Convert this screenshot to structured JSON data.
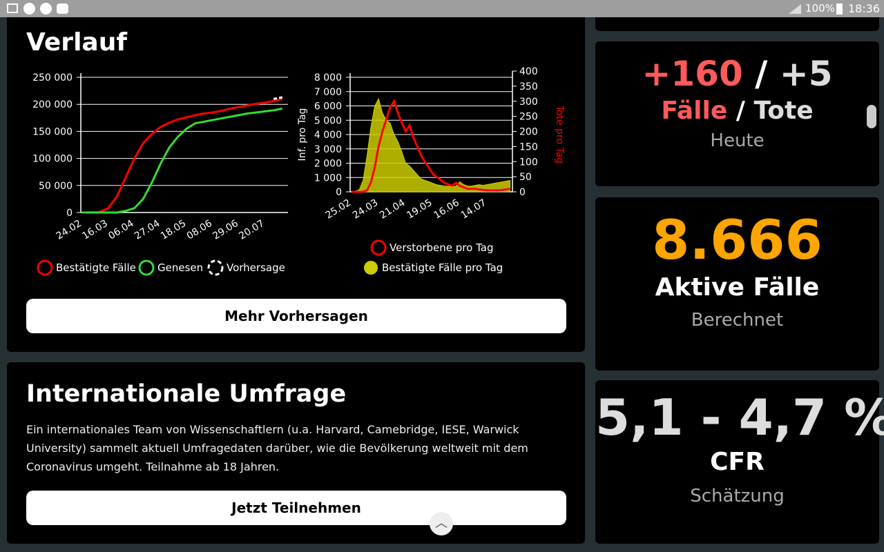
{
  "status_bar": {
    "battery": "100%",
    "time": "18:36"
  },
  "verlauf": {
    "title": "Verlauf",
    "button": "Mehr Vorhersagen"
  },
  "umfrage": {
    "title": "Internationale Umfrage",
    "text": "Ein internationales Team von Wissenschaftlern (u.a. Harvard, Camebridge, IESE, Warwick University) sammelt aktuell Umfragedaten darüber, wie die Bevölkerung weltweit mit dem Coronavirus umgeht. Teilnahme ab 18 Jahren.",
    "button": "Jetzt Teilnehmen"
  },
  "cards": [
    {
      "top": [
        "+160",
        "/",
        "+5"
      ],
      "middle": [
        "Fälle",
        "/",
        "Tote"
      ],
      "sub": "Heute"
    },
    {
      "top": [
        "8.666"
      ],
      "middle": [
        "Aktive Fälle"
      ],
      "sub": "Berechnet"
    },
    {
      "top": [
        "5,1 - 4,7 %"
      ],
      "middle": [
        "CFR"
      ],
      "sub": "Schätzung"
    }
  ],
  "chart_data": [
    {
      "type": "line",
      "grid": true,
      "categories": [
        "24.02",
        null,
        null,
        "16.03",
        null,
        null,
        "06.04",
        null,
        null,
        "27.04",
        null,
        null,
        "18.05",
        null,
        null,
        "08.06",
        null,
        null,
        "29.06",
        null,
        null,
        "20.07",
        null,
        null
      ],
      "ylim": [
        0,
        250000
      ],
      "yticks": [
        0,
        {
          "value": 50000,
          "label": "50 000"
        },
        {
          "value": 100000,
          "label": "100 000"
        },
        {
          "value": 150000,
          "label": "150 000"
        },
        {
          "value": 200000,
          "label": "200 000"
        },
        {
          "value": 250000,
          "label": "250 000"
        }
      ],
      "series": [
        {
          "name": "Bestätigte Fälle",
          "color": "#ff0000",
          "values": [
            0,
            200,
            1000,
            8000,
            30000,
            65000,
            100000,
            128000,
            145000,
            158000,
            166000,
            172000,
            176000,
            180000,
            183000,
            185000,
            188000,
            192000,
            195000,
            198000,
            201000,
            203000,
            206000,
            210000
          ]
        },
        {
          "name": "Genesen",
          "color": "#33dd33",
          "values": [
            0,
            0,
            0,
            0,
            0,
            3000,
            8000,
            25000,
            55000,
            90000,
            120000,
            140000,
            155000,
            165000,
            168000,
            171000,
            174000,
            177000,
            180000,
            183000,
            185000,
            187000,
            189000,
            192000
          ]
        },
        {
          "name": "Vorhersage",
          "color": "#ffffff",
          "dashed": true,
          "values": [
            null,
            null,
            null,
            null,
            null,
            null,
            null,
            null,
            null,
            null,
            null,
            null,
            null,
            null,
            null,
            null,
            null,
            null,
            null,
            null,
            null,
            null,
            210000,
            213000
          ]
        }
      ]
    },
    {
      "type": "line",
      "grid": true,
      "ylabel": "Inf. pro Tag",
      "y2label": "Tote pro Tag",
      "categories": [
        "25.02",
        null,
        null,
        null,
        null,
        null,
        null,
        "24.03",
        null,
        null,
        null,
        null,
        null,
        null,
        "21.04",
        null,
        null,
        null,
        null,
        null,
        null,
        "19.05",
        null,
        null,
        null,
        null,
        null,
        null,
        "16.06",
        null,
        null,
        null,
        null,
        null,
        null,
        "14.07",
        null,
        null,
        null,
        null,
        null,
        null
      ],
      "ylim": [
        0,
        8000
      ],
      "yticks": [
        0,
        {
          "value": 1000,
          "label": "1 000"
        },
        {
          "value": 2000,
          "label": "2 000"
        },
        {
          "value": 3000,
          "label": "3 000"
        },
        {
          "value": 4000,
          "label": "4 000"
        },
        {
          "value": 5000,
          "label": "5 000"
        },
        {
          "value": 6000,
          "label": "6 000"
        },
        {
          "value": 7000,
          "label": "7 000"
        },
        {
          "value": 8000,
          "label": "8 000"
        }
      ],
      "y2lim": [
        0,
        400
      ],
      "y2ticks": [
        0,
        50,
        100,
        150,
        200,
        250,
        300,
        350,
        400
      ],
      "series": [
        {
          "name": "Verstorbene pro Tag",
          "color": "#ff0000",
          "axis": "y2",
          "values": [
            0,
            0,
            0,
            0,
            5,
            30,
            80,
            150,
            200,
            240,
            280,
            300,
            260,
            230,
            200,
            220,
            180,
            150,
            120,
            100,
            80,
            60,
            50,
            40,
            30,
            25,
            20,
            30,
            20,
            15,
            10,
            10,
            10,
            8,
            6,
            5,
            5,
            5,
            5,
            6,
            8,
            10
          ]
        },
        {
          "name": "Bestätigte Fälle pro Tag",
          "color": "#cccc00",
          "type": "area",
          "values": [
            0,
            50,
            150,
            800,
            2500,
            4500,
            6000,
            6500,
            5500,
            5000,
            4800,
            4000,
            3500,
            2800,
            2000,
            1800,
            1500,
            1200,
            900,
            800,
            700,
            600,
            500,
            450,
            400,
            400,
            350,
            400,
            700,
            500,
            400,
            400,
            450,
            500,
            450,
            500,
            550,
            600,
            650,
            700,
            750,
            800
          ]
        }
      ]
    }
  ]
}
